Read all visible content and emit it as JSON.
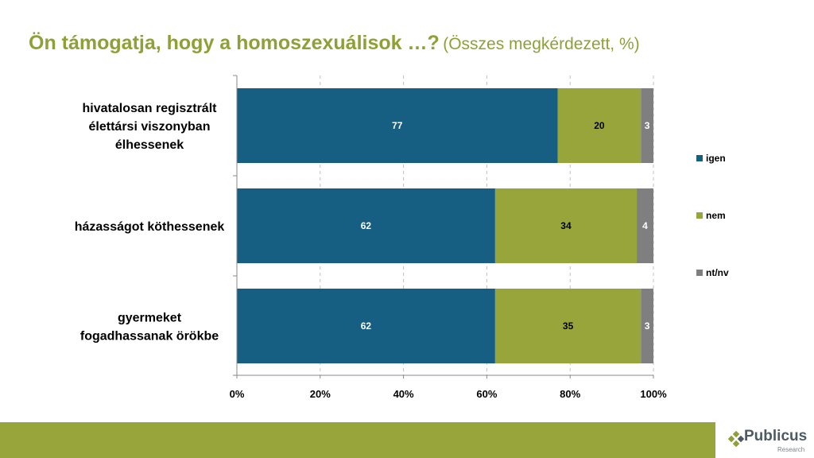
{
  "title": {
    "main": "Ön támogatja, hogy a homoszexuálisok …?",
    "sub": "(Összes megkérdezett, %)"
  },
  "chart_data": {
    "type": "bar",
    "orientation": "horizontal",
    "stacked": true,
    "categories": [
      [
        "hivatalosan regisztrált",
        "élettársi viszonyban",
        "élhessenek"
      ],
      [
        "házasságot köthessenek"
      ],
      [
        "gyermeket",
        "fogadhassanak örökbe"
      ]
    ],
    "series": [
      {
        "name": "igen",
        "values": [
          77,
          62,
          62
        ],
        "color": "#175e83"
      },
      {
        "name": "nem",
        "values": [
          20,
          34,
          35
        ],
        "color": "#97a53a"
      },
      {
        "name": "nt/nv",
        "values": [
          3,
          4,
          3
        ],
        "color": "#7f7f7f"
      }
    ],
    "xlim": [
      0,
      100
    ],
    "x_ticks": [
      "0%",
      "20%",
      "40%",
      "60%",
      "80%",
      "100%"
    ],
    "grid": "vertical dashed",
    "legend_position": "right",
    "data_labels": true
  },
  "logo": {
    "name": "Publicus",
    "sub": "Research",
    "colors": [
      "#8fa036",
      "#4d5a63"
    ]
  }
}
